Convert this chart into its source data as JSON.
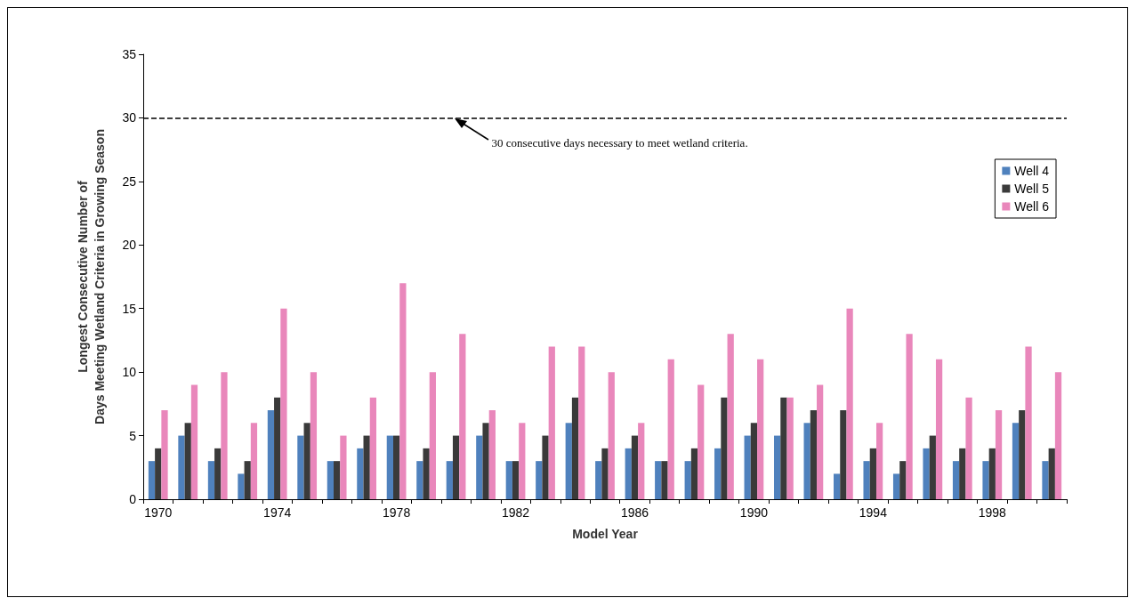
{
  "chart_data": {
    "type": "bar",
    "xlabel": "Model Year",
    "ylabel": "Longest Consecutive Number of\nDays Meeting Wetland Criteria in Growing Season",
    "categories": [
      "1970",
      null,
      null,
      null,
      "1974",
      null,
      null,
      null,
      "1978",
      null,
      null,
      null,
      "1982",
      null,
      null,
      null,
      "1986",
      null,
      null,
      null,
      "1990",
      null,
      null,
      null,
      "1994",
      null,
      null,
      null,
      "1998",
      null,
      null
    ],
    "series": [
      {
        "name": "Well 4",
        "color": "#4f81bd",
        "values": [
          3,
          5,
          3,
          2,
          7,
          5,
          3,
          4,
          5,
          3,
          3,
          5,
          3,
          3,
          6,
          3,
          4,
          3,
          3,
          4,
          5,
          5,
          6,
          2,
          3,
          2,
          4,
          3,
          3,
          6,
          3
        ]
      },
      {
        "name": "Well 5",
        "color": "#3a3a3a",
        "values": [
          4,
          6,
          4,
          3,
          8,
          6,
          3,
          5,
          5,
          4,
          5,
          6,
          3,
          5,
          8,
          4,
          5,
          3,
          4,
          8,
          6,
          8,
          7,
          7,
          4,
          3,
          5,
          4,
          4,
          7,
          4
        ]
      },
      {
        "name": "Well 6",
        "color": "#e987bb",
        "values": [
          7,
          9,
          10,
          6,
          15,
          10,
          5,
          8,
          17,
          10,
          13,
          7,
          6,
          12,
          12,
          10,
          6,
          11,
          9,
          13,
          11,
          8,
          9,
          15,
          6,
          13,
          11,
          8,
          7,
          12,
          10
        ]
      }
    ],
    "ylim": [
      0,
      35
    ],
    "yticks": [
      0,
      5,
      10,
      15,
      20,
      25,
      30,
      35
    ],
    "grid": false,
    "legend": "right",
    "ref_lines": [
      {
        "axis": "y",
        "value": 30,
        "label": null,
        "color": "#000000",
        "line_style": "dashed"
      }
    ],
    "annotations": [
      "30 consecutive days necessary to meet wetland criteria."
    ]
  }
}
